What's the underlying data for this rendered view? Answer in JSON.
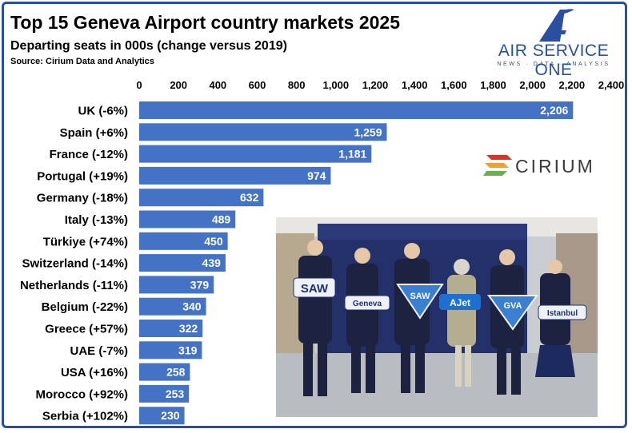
{
  "header": {
    "title": "Top 15 Geneva Airport country markets 2025",
    "subtitle": "Departing seats in 000s (change versus 2019)",
    "source": "Source: Cirium Data and Analytics"
  },
  "brand": {
    "name": "AIR SERVICE ONE",
    "tagline": "NEWS · DATA · ANALYSIS"
  },
  "sponsor": {
    "name": "CIRIUM"
  },
  "photo": {
    "signs": [
      "SAW",
      "Geneva",
      "SAW",
      "AJet",
      "GVA",
      "Istanbul"
    ]
  },
  "colors": {
    "bar": "#4472c4",
    "frame": "#2a4ea0",
    "accent_red": "#d9342b",
    "accent_orange": "#f0a030",
    "accent_green": "#6ab04c"
  },
  "chart_data": {
    "type": "bar",
    "orientation": "horizontal",
    "categories": [
      "UK (-6%)",
      "Spain (+6%)",
      "France (-12%)",
      "Portugal (+19%)",
      "Germany (-18%)",
      "Italy (-13%)",
      "Türkiye (+74%)",
      "Switzerland (-14%)",
      "Netherlands (-11%)",
      "Belgium (-22%)",
      "Greece (+57%)",
      "UAE (-7%)",
      "USA (+16%)",
      "Morocco (+92%)",
      "Serbia (+102%)"
    ],
    "values": [
      2206,
      1259,
      1181,
      974,
      632,
      489,
      450,
      439,
      379,
      340,
      322,
      319,
      258,
      253,
      230
    ],
    "value_labels": [
      "2,206",
      "1,259",
      "1,181",
      "974",
      "632",
      "489",
      "450",
      "439",
      "379",
      "340",
      "322",
      "319",
      "258",
      "253",
      "230"
    ],
    "xlim": [
      0,
      2400
    ],
    "xticks": [
      0,
      200,
      400,
      600,
      800,
      1000,
      1200,
      1400,
      1600,
      1800,
      2000,
      2200,
      2400
    ],
    "xtick_labels": [
      "0",
      "200",
      "400",
      "600",
      "800",
      "1,000",
      "1,200",
      "1,400",
      "1,600",
      "1,800",
      "2,000",
      "2,200",
      "2,400"
    ],
    "axis_position": "top",
    "grid": false,
    "legend": "none"
  }
}
